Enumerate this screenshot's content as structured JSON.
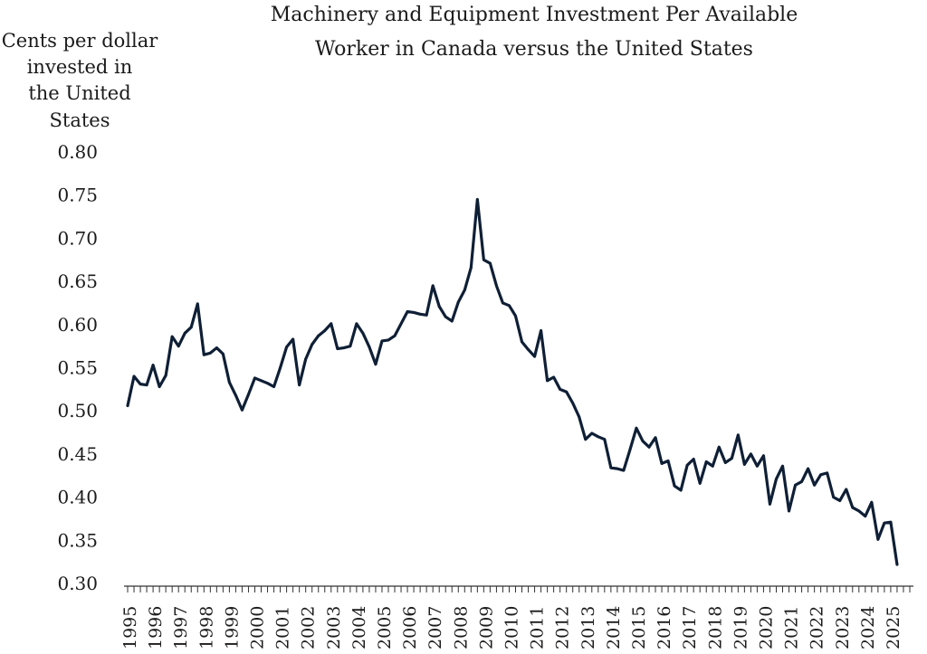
{
  "chart_data": {
    "type": "line",
    "title_lines": [
      "Machinery and Equipment Investment Per Available",
      "Worker in Canada versus the United States"
    ],
    "ylabel_lines": [
      "Cents per dollar",
      "invested in",
      "the United States"
    ],
    "xlabel": "",
    "ylim": [
      0.3,
      0.8
    ],
    "yticks": [
      "0.80",
      "0.75",
      "0.70",
      "0.65",
      "0.60",
      "0.55",
      "0.50",
      "0.45",
      "0.40",
      "0.35",
      "0.30"
    ],
    "xticks": [
      "1995",
      "1996",
      "1997",
      "1998",
      "1999",
      "2000",
      "2001",
      "2002",
      "2003",
      "2004",
      "2005",
      "2006",
      "2007",
      "2008",
      "2009",
      "2010",
      "2011",
      "2012",
      "2013",
      "2014",
      "2015",
      "2016",
      "2017",
      "2018",
      "2019",
      "2020",
      "2021",
      "2022",
      "2023",
      "2024",
      "2025"
    ],
    "x_start": 1995.0,
    "x_step": 0.25,
    "line_color": "#0f1f35",
    "series": [
      {
        "name": "Canada vs United States",
        "values": [
          0.506,
          0.54,
          0.531,
          0.53,
          0.553,
          0.528,
          0.541,
          0.586,
          0.575,
          0.59,
          0.597,
          0.624,
          0.565,
          0.567,
          0.573,
          0.566,
          0.533,
          0.518,
          0.501,
          0.519,
          0.538,
          0.535,
          0.532,
          0.528,
          0.55,
          0.574,
          0.583,
          0.53,
          0.56,
          0.577,
          0.587,
          0.593,
          0.601,
          0.572,
          0.573,
          0.575,
          0.601,
          0.59,
          0.574,
          0.554,
          0.581,
          0.582,
          0.587,
          0.601,
          0.615,
          0.614,
          0.612,
          0.611,
          0.645,
          0.621,
          0.609,
          0.604,
          0.626,
          0.64,
          0.666,
          0.745,
          0.675,
          0.671,
          0.645,
          0.625,
          0.622,
          0.61,
          0.58,
          0.571,
          0.563,
          0.593,
          0.535,
          0.539,
          0.525,
          0.522,
          0.509,
          0.493,
          0.467,
          0.474,
          0.47,
          0.467,
          0.434,
          0.433,
          0.431,
          0.455,
          0.48,
          0.465,
          0.458,
          0.469,
          0.439,
          0.442,
          0.413,
          0.408,
          0.437,
          0.444,
          0.416,
          0.441,
          0.436,
          0.458,
          0.44,
          0.445,
          0.472,
          0.438,
          0.45,
          0.436,
          0.448,
          0.392,
          0.421,
          0.436,
          0.384,
          0.414,
          0.418,
          0.433,
          0.414,
          0.426,
          0.428,
          0.4,
          0.396,
          0.409,
          0.388,
          0.384,
          0.378,
          0.394,
          0.351,
          0.37,
          0.371,
          0.322
        ]
      }
    ]
  }
}
